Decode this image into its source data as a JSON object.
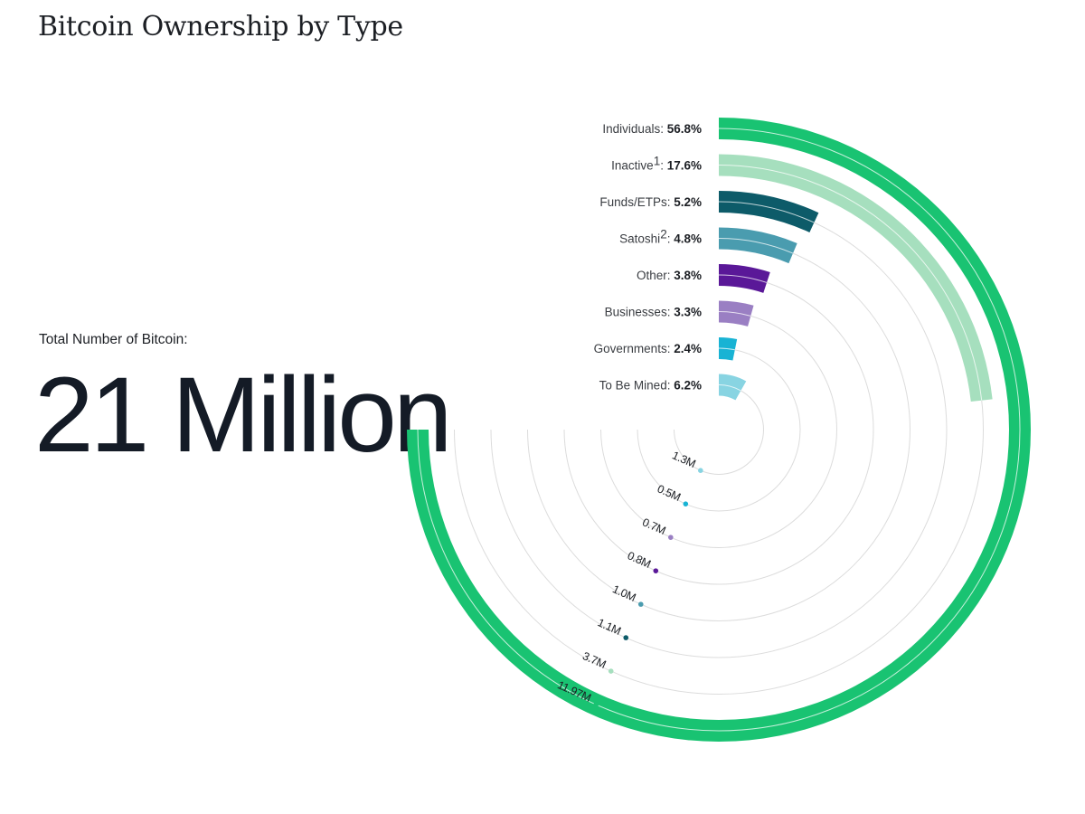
{
  "header": {
    "title": "Bitcoin Ownership by Type"
  },
  "total": {
    "label": "Total Number of Bitcoin:",
    "value": "21 Million"
  },
  "chart_data": {
    "type": "radial-bar",
    "title": "Bitcoin Ownership by Type",
    "series": [
      {
        "name": "Individuals",
        "sup": "",
        "percent": 56.8,
        "percent_label": "56.8%",
        "amount_label": "11.97M",
        "color": "#19c372"
      },
      {
        "name": "Inactive",
        "sup": "1",
        "percent": 17.6,
        "percent_label": "17.6%",
        "amount_label": "3.7M",
        "color": "#a6dfbe"
      },
      {
        "name": "Funds/ETPs",
        "sup": "",
        "percent": 5.2,
        "percent_label": "5.2%",
        "amount_label": "1.1M",
        "color": "#0d5b69"
      },
      {
        "name": "Satoshi",
        "sup": "2",
        "percent": 4.8,
        "percent_label": "4.8%",
        "amount_label": "1.0M",
        "color": "#4a9caf"
      },
      {
        "name": "Other",
        "sup": "",
        "percent": 3.8,
        "percent_label": "3.8%",
        "amount_label": "0.8M",
        "color": "#5a1898"
      },
      {
        "name": "Businesses",
        "sup": "",
        "percent": 3.3,
        "percent_label": "3.3%",
        "amount_label": "0.7M",
        "color": "#9a7fc3"
      },
      {
        "name": "Governments",
        "sup": "",
        "percent": 2.4,
        "percent_label": "2.4%",
        "amount_label": "0.5M",
        "color": "#18b3d4"
      },
      {
        "name": "To Be Mined",
        "sup": "",
        "percent": 6.2,
        "percent_label": "6.2%",
        "amount_label": "1.3M",
        "color": "#88d4e2"
      }
    ]
  }
}
